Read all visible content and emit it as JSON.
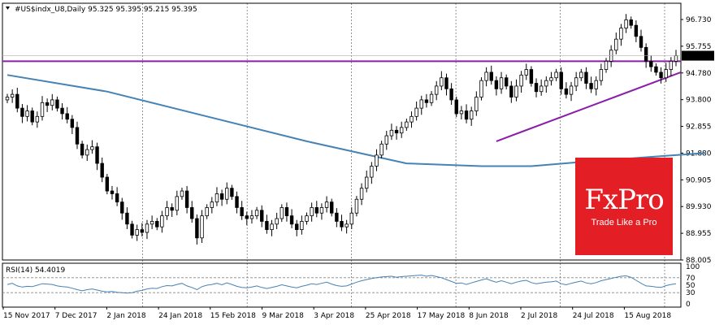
{
  "chart_data": [
    {
      "type": "candlestick",
      "header": {
        "symbol_label": "#US$indx_U8,Daily",
        "ohlc": [
          "95.325",
          "95.395",
          "95.215",
          "95.395"
        ]
      },
      "last_price_label": "95.395",
      "ylim": [
        88.0,
        97.3
      ],
      "y_ticks": [
        "96.730",
        "95.755",
        "94.780",
        "93.800",
        "92.855",
        "91.880",
        "90.905",
        "89.930",
        "88.955",
        "88.005"
      ],
      "x_labels": [
        "15 Nov 2017",
        "7 Dec 2017",
        "2 Jan 2018",
        "24 Jan 2018",
        "15 Feb 2018",
        "9 Mar 2018",
        "3 Apr 2018",
        "25 Apr 2018",
        "17 May 2018",
        "8 Jun 2018",
        "2 Jul 2018",
        "24 Jul 2018",
        "15 Aug 2018"
      ],
      "closes": [
        93.9,
        94.0,
        93.5,
        93.2,
        93.4,
        93.0,
        93.2,
        93.7,
        93.6,
        93.8,
        93.5,
        93.3,
        93.1,
        92.8,
        92.2,
        91.8,
        92.0,
        92.1,
        91.5,
        91.0,
        90.5,
        90.4,
        90.1,
        89.7,
        89.3,
        88.9,
        89.1,
        89.0,
        89.3,
        89.4,
        89.2,
        89.6,
        89.9,
        89.8,
        90.3,
        90.5,
        89.9,
        89.5,
        88.8,
        89.6,
        89.9,
        90.1,
        90.4,
        90.2,
        90.6,
        90.3,
        89.9,
        89.6,
        89.5,
        89.6,
        89.8,
        89.4,
        89.1,
        89.3,
        89.5,
        89.9,
        89.6,
        89.3,
        89.1,
        89.4,
        89.6,
        89.9,
        89.7,
        89.9,
        90.1,
        89.7,
        89.4,
        89.2,
        89.3,
        89.7,
        90.2,
        90.6,
        91.0,
        91.4,
        91.8,
        92.2,
        92.5,
        92.7,
        92.6,
        92.8,
        93.0,
        93.2,
        93.5,
        93.8,
        93.7,
        94.0,
        94.3,
        94.6,
        94.2,
        93.8,
        93.3,
        93.4,
        93.1,
        93.4,
        93.9,
        94.5,
        94.8,
        94.5,
        94.2,
        94.6,
        94.3,
        93.9,
        94.3,
        94.7,
        94.9,
        94.4,
        94.1,
        94.3,
        94.5,
        94.6,
        94.8,
        94.2,
        94.0,
        94.3,
        94.6,
        94.8,
        94.4,
        94.2,
        94.5,
        94.9,
        95.2,
        95.6,
        96.0,
        96.4,
        96.7,
        96.5,
        96.1,
        95.7,
        95.2,
        95.0,
        94.8,
        94.6,
        94.9,
        95.2,
        95.4
      ],
      "ma_points": [
        [
          0,
          94.7
        ],
        [
          20,
          94.1
        ],
        [
          40,
          93.2
        ],
        [
          60,
          92.3
        ],
        [
          80,
          91.5
        ],
        [
          95,
          91.4
        ],
        [
          105,
          91.4
        ],
        [
          115,
          91.55
        ],
        [
          130,
          91.75
        ],
        [
          140,
          91.88
        ]
      ],
      "resistance_level": 95.2,
      "support_trend": {
        "from": [
          98,
          92.3
        ],
        "to": [
          140,
          94.8
        ]
      },
      "series": []
    },
    {
      "type": "line",
      "label": "RSI(14) 54.4019",
      "ylim": [
        0,
        100
      ],
      "y_ticks": [
        "100",
        "70",
        "50",
        "30",
        "0"
      ],
      "levels": [
        70,
        30
      ],
      "values": [
        52,
        55,
        48,
        45,
        47,
        46,
        50,
        54,
        53,
        52,
        48,
        46,
        45,
        42,
        38,
        35,
        38,
        40,
        37,
        34,
        32,
        33,
        31,
        30,
        29,
        30,
        34,
        36,
        40,
        42,
        41,
        46,
        49,
        48,
        52,
        55,
        48,
        44,
        38,
        46,
        50,
        52,
        55,
        51,
        56,
        52,
        47,
        44,
        43,
        45,
        48,
        44,
        41,
        44,
        47,
        51,
        48,
        45,
        43,
        47,
        50,
        54,
        52,
        55,
        58,
        53,
        49,
        47,
        48,
        53,
        58,
        62,
        65,
        68,
        70,
        72,
        73,
        74,
        71,
        73,
        74,
        75,
        76,
        77,
        74,
        76,
        73,
        70,
        65,
        60,
        55,
        56,
        52,
        56,
        60,
        64,
        67,
        62,
        58,
        62,
        58,
        54,
        58,
        61,
        63,
        57,
        54,
        56,
        58,
        59,
        61,
        54,
        51,
        55,
        58,
        61,
        56,
        54,
        57,
        62,
        65,
        68,
        71,
        74,
        75,
        71,
        63,
        55,
        48,
        47,
        45,
        44,
        49,
        52,
        54
      ]
    }
  ],
  "branding": {
    "title": "FxPro",
    "subtitle": "Trade Like a Pro",
    "color": "#e31e24"
  }
}
